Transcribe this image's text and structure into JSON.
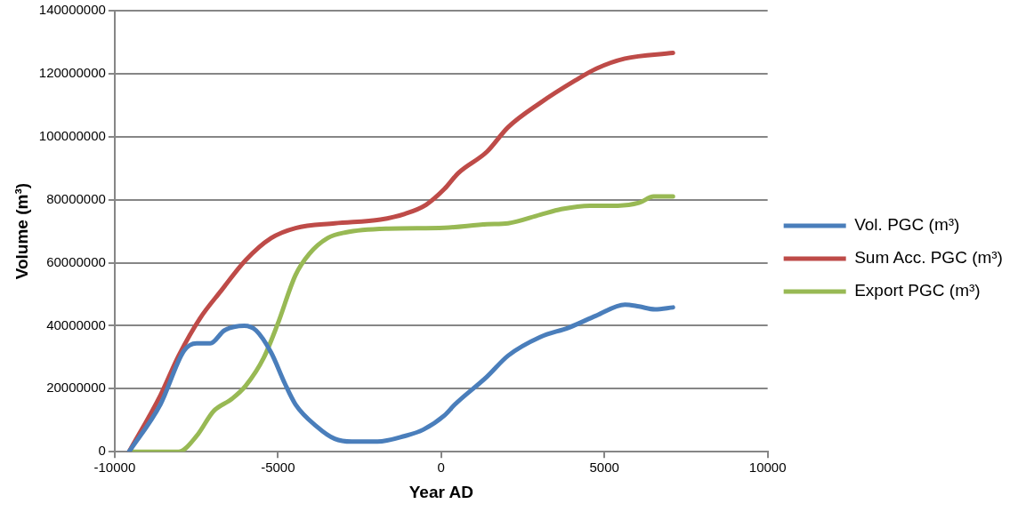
{
  "chart_data": {
    "type": "line",
    "xlabel": "Year AD",
    "ylabel": "Volume (m³)",
    "xlim": [
      -10000,
      10000
    ],
    "xticks": [
      -10000,
      -5000,
      0,
      5000,
      10000
    ],
    "ylim": [
      0,
      140000000
    ],
    "yticks": [
      0,
      20000000,
      40000000,
      60000000,
      80000000,
      100000000,
      120000000,
      140000000
    ],
    "grid": "y",
    "legend": "right",
    "marker": "none",
    "line_style": "solid",
    "series": [
      {
        "name": "Vol. PGC (m³)",
        "color": "#4a7ebb",
        "x": [
          -9560,
          -8600,
          -7880,
          -7490,
          -7070,
          -6640,
          -6030,
          -5670,
          -5210,
          -4790,
          -4460,
          -3810,
          -3260,
          -2740,
          -1950,
          -1110,
          -550,
          100,
          420,
          1400,
          2050,
          3030,
          3910,
          4750,
          5630,
          6060,
          6550,
          7100
        ],
        "values": [
          0,
          15000000,
          32000000,
          34400000,
          34400000,
          38500000,
          40000000,
          38500000,
          31500000,
          21700000,
          15000000,
          8000000,
          4100000,
          3200000,
          3200000,
          5000000,
          7000000,
          11500000,
          15000000,
          23800000,
          30500000,
          36400000,
          39400000,
          43200000,
          46700000,
          46100000,
          45200000,
          45800000
        ]
      },
      {
        "name": "Sum Acc. PGC (m³)",
        "color": "#be4b48",
        "x": [
          -9560,
          -8600,
          -8040,
          -7390,
          -6740,
          -5990,
          -5210,
          -4460,
          -3260,
          -1860,
          -1110,
          -460,
          100,
          520,
          1400,
          2050,
          3030,
          4100,
          4750,
          5630,
          7100
        ],
        "values": [
          0,
          17900000,
          30500000,
          42300000,
          51100000,
          60800000,
          67800000,
          71000000,
          72500000,
          73700000,
          75500000,
          78400000,
          83400000,
          88400000,
          95200000,
          103000000,
          110700000,
          117800000,
          121600000,
          124800000,
          126600000
        ]
      },
      {
        "name": "Export PGC (m³)",
        "color": "#98b954",
        "x": [
          -9560,
          -8040,
          -7490,
          -6970,
          -6420,
          -5990,
          -5440,
          -5020,
          -4460,
          -4040,
          -3480,
          -2930,
          -1630,
          100,
          1400,
          2050,
          3030,
          3680,
          4560,
          5410,
          6060,
          6510,
          7100
        ],
        "values": [
          0,
          0,
          5000000,
          12900000,
          16700000,
          20900000,
          29700000,
          40200000,
          56100000,
          62800000,
          67800000,
          69600000,
          70800000,
          71100000,
          72200000,
          72500000,
          75200000,
          77000000,
          78100000,
          78100000,
          79000000,
          81000000,
          81000000
        ]
      }
    ]
  }
}
